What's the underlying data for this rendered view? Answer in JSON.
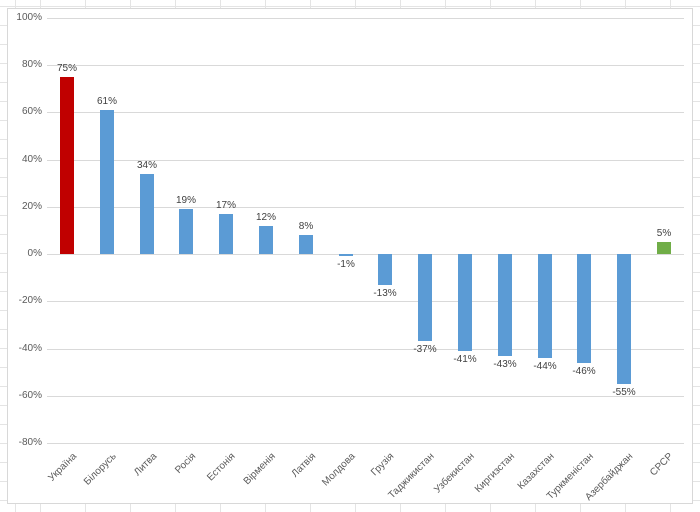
{
  "chart_data": {
    "type": "bar",
    "title": "",
    "xlabel": "",
    "ylabel": "",
    "categories": [
      "Україна",
      "Білорусь",
      "Литва",
      "Росія",
      "Естонія",
      "Вірменія",
      "Латвія",
      "Молдова",
      "Грузія",
      "Таджикистан",
      "Узбекистан",
      "Киргизстан",
      "Казахстан",
      "Туркменістан",
      "Азербайджан",
      "СРСР"
    ],
    "values": [
      75,
      61,
      34,
      19,
      17,
      12,
      8,
      -1,
      -13,
      -37,
      -41,
      -43,
      -44,
      -46,
      -55,
      5
    ],
    "data_labels": [
      "75%",
      "61%",
      "34%",
      "19%",
      "17%",
      "12%",
      "8%",
      "-1%",
      "-13%",
      "-37%",
      "-41%",
      "-43%",
      "-44%",
      "-46%",
      "-55%",
      "5%"
    ],
    "bar_colors": [
      "#C00000",
      "#5B9BD5",
      "#5B9BD5",
      "#5B9BD5",
      "#5B9BD5",
      "#5B9BD5",
      "#5B9BD5",
      "#5B9BD5",
      "#5B9BD5",
      "#5B9BD5",
      "#5B9BD5",
      "#5B9BD5",
      "#5B9BD5",
      "#5B9BD5",
      "#5B9BD5",
      "#70AD47"
    ],
    "ylim": [
      -80,
      100
    ],
    "ytick_step": 20,
    "yticks": [
      {
        "value": 100,
        "label": "100%"
      },
      {
        "value": 80,
        "label": "80%"
      },
      {
        "value": 60,
        "label": "60%"
      },
      {
        "value": 40,
        "label": "40%"
      },
      {
        "value": 20,
        "label": "20%"
      },
      {
        "value": 0,
        "label": "0%"
      },
      {
        "value": -20,
        "label": "-20%"
      },
      {
        "value": -40,
        "label": "-40%"
      },
      {
        "value": -60,
        "label": "-60%"
      },
      {
        "value": -80,
        "label": "-80%"
      }
    ],
    "grid": true,
    "legend": false,
    "category_label_rotation_deg": -45,
    "data_label_position": "outside-end"
  },
  "colors": {
    "bar_default": "#5B9BD5",
    "bar_first_highlight": "#C00000",
    "bar_last_highlight": "#70AD47",
    "plot_gridline": "#D9D9D9",
    "chart_border": "#D8D8D8",
    "axis_text": "#595959",
    "data_label_text": "#3F3F3F",
    "sheet_gridline": "#E4E4E4",
    "background": "#FFFFFF"
  }
}
